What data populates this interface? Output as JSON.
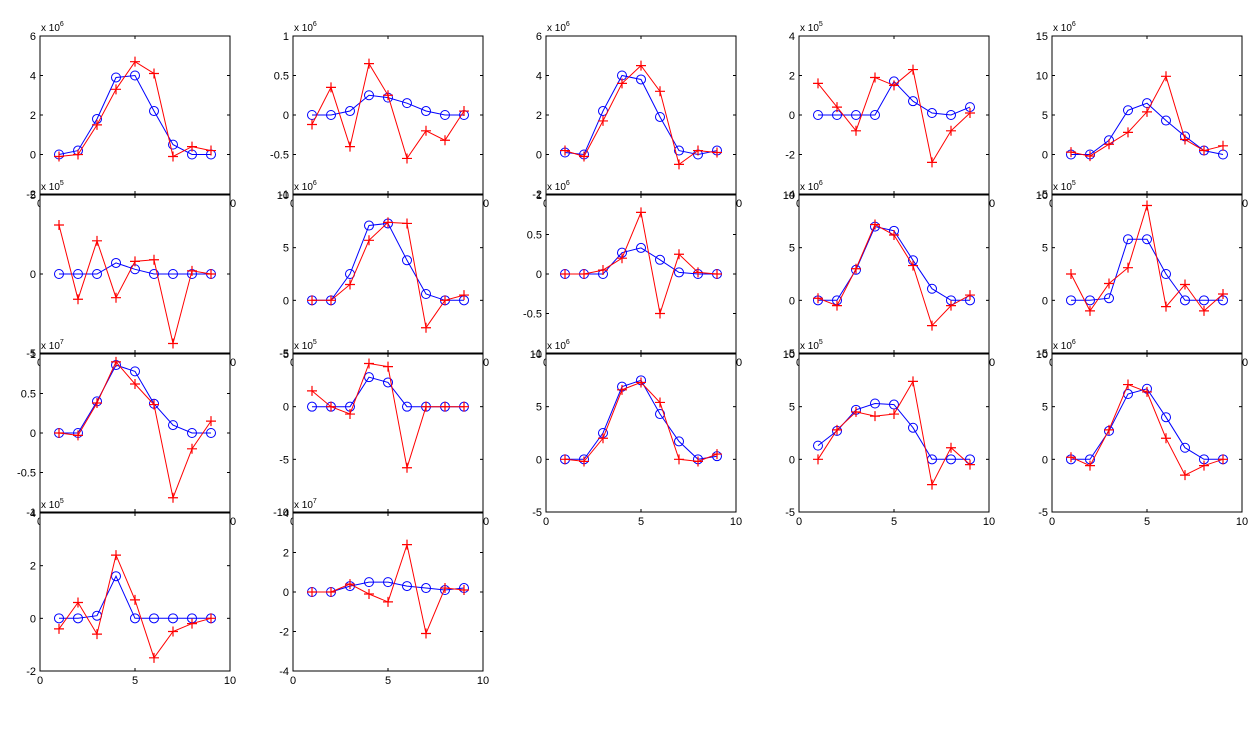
{
  "colors": {
    "blue": "#0000ff",
    "red": "#ff0000",
    "axes": "#000000",
    "background": "#ffffff"
  },
  "chart_data": [
    {
      "type": "line",
      "multiplier": "x 10",
      "exponent": "6",
      "xlim": [
        0,
        10
      ],
      "ylim": [
        -2,
        6
      ],
      "xticks": [
        0,
        5,
        10
      ],
      "yticks": [
        -2,
        0,
        2,
        4,
        6
      ],
      "x": [
        1,
        2,
        3,
        4,
        5,
        6,
        7,
        8,
        9
      ],
      "series": [
        {
          "marker": "circle",
          "color": "#0000ff",
          "values": [
            0,
            0.2,
            1.8,
            3.9,
            4.0,
            2.2,
            0.5,
            0,
            0
          ]
        },
        {
          "marker": "plus",
          "color": "#ff0000",
          "values": [
            -0.1,
            0,
            1.5,
            3.3,
            4.7,
            4.1,
            -0.1,
            0.4,
            0.2
          ]
        }
      ]
    },
    {
      "type": "line",
      "multiplier": "x 10",
      "exponent": "6",
      "xlim": [
        0,
        10
      ],
      "ylim": [
        -1,
        1
      ],
      "xticks": [
        0,
        5,
        10
      ],
      "yticks": [
        -1,
        -0.5,
        0,
        0.5,
        1
      ],
      "x": [
        1,
        2,
        3,
        4,
        5,
        6,
        7,
        8,
        9
      ],
      "series": [
        {
          "marker": "circle",
          "color": "#0000ff",
          "values": [
            0,
            0,
            0.05,
            0.25,
            0.22,
            0.15,
            0.05,
            0,
            0
          ]
        },
        {
          "marker": "plus",
          "color": "#ff0000",
          "values": [
            -0.12,
            0.35,
            -0.4,
            0.65,
            0.25,
            -0.55,
            -0.2,
            -0.32,
            0.05
          ]
        }
      ]
    },
    {
      "type": "line",
      "multiplier": "x 10",
      "exponent": "6",
      "xlim": [
        0,
        10
      ],
      "ylim": [
        -2,
        6
      ],
      "xticks": [
        0,
        5,
        10
      ],
      "yticks": [
        -2,
        0,
        2,
        4,
        6
      ],
      "x": [
        1,
        2,
        3,
        4,
        5,
        6,
        7,
        8,
        9
      ],
      "series": [
        {
          "marker": "circle",
          "color": "#0000ff",
          "values": [
            0.1,
            0,
            2.2,
            4.0,
            3.8,
            1.9,
            0.2,
            0,
            0.2
          ]
        },
        {
          "marker": "plus",
          "color": "#ff0000",
          "values": [
            0.2,
            -0.1,
            1.7,
            3.6,
            4.5,
            3.2,
            -0.5,
            0.2,
            0.1
          ]
        }
      ]
    },
    {
      "type": "line",
      "multiplier": "x 10",
      "exponent": "5",
      "xlim": [
        0,
        10
      ],
      "ylim": [
        -4,
        4
      ],
      "xticks": [
        0,
        5,
        10
      ],
      "yticks": [
        -4,
        -2,
        0,
        2,
        4
      ],
      "x": [
        1,
        2,
        3,
        4,
        5,
        6,
        7,
        8,
        9
      ],
      "series": [
        {
          "marker": "circle",
          "color": "#0000ff",
          "values": [
            0,
            0,
            0,
            0,
            1.7,
            0.7,
            0.1,
            0,
            0.4
          ]
        },
        {
          "marker": "plus",
          "color": "#ff0000",
          "values": [
            1.6,
            0.4,
            -0.8,
            1.9,
            1.5,
            2.3,
            -2.4,
            -0.8,
            0.1
          ]
        }
      ]
    },
    {
      "type": "line",
      "multiplier": "x 10",
      "exponent": "6",
      "xlim": [
        0,
        10
      ],
      "ylim": [
        -5,
        15
      ],
      "xticks": [
        0,
        5,
        10
      ],
      "yticks": [
        -5,
        0,
        5,
        10,
        15
      ],
      "x": [
        1,
        2,
        3,
        4,
        5,
        6,
        7,
        8,
        9
      ],
      "series": [
        {
          "marker": "circle",
          "color": "#0000ff",
          "values": [
            0,
            0,
            1.8,
            5.6,
            6.5,
            4.3,
            2.3,
            0.5,
            0
          ]
        },
        {
          "marker": "plus",
          "color": "#ff0000",
          "values": [
            0.3,
            -0.2,
            1.3,
            2.8,
            5.4,
            9.9,
            1.9,
            0.5,
            1.1
          ]
        }
      ]
    },
    {
      "type": "line",
      "multiplier": "x 10",
      "exponent": "5",
      "xlim": [
        0,
        10
      ],
      "ylim": [
        -5,
        5
      ],
      "xticks": [
        0,
        5,
        10
      ],
      "yticks": [
        -5,
        0,
        5
      ],
      "x": [
        1,
        2,
        3,
        4,
        5,
        6,
        7,
        8,
        9
      ],
      "series": [
        {
          "marker": "circle",
          "color": "#0000ff",
          "values": [
            0,
            0,
            0,
            0.7,
            0.3,
            0,
            0,
            0,
            0
          ]
        },
        {
          "marker": "plus",
          "color": "#ff0000",
          "values": [
            3.1,
            -1.6,
            2.1,
            -1.5,
            0.8,
            0.9,
            -4.4,
            0.2,
            0
          ]
        }
      ]
    },
    {
      "type": "line",
      "multiplier": "x 10",
      "exponent": "6",
      "xlim": [
        0,
        10
      ],
      "ylim": [
        -5,
        10
      ],
      "xticks": [
        0,
        5,
        10
      ],
      "yticks": [
        -5,
        0,
        5,
        10
      ],
      "x": [
        1,
        2,
        3,
        4,
        5,
        6,
        7,
        8,
        9
      ],
      "series": [
        {
          "marker": "circle",
          "color": "#0000ff",
          "values": [
            0,
            0,
            2.5,
            7.1,
            7.3,
            3.8,
            0.6,
            0,
            0
          ]
        },
        {
          "marker": "plus",
          "color": "#ff0000",
          "values": [
            0,
            0,
            1.5,
            5.7,
            7.4,
            7.3,
            -2.6,
            0,
            0.5
          ]
        }
      ]
    },
    {
      "type": "line",
      "multiplier": "x 10",
      "exponent": "6",
      "xlim": [
        0,
        10
      ],
      "ylim": [
        -1,
        1
      ],
      "xticks": [
        0,
        5,
        10
      ],
      "yticks": [
        -1,
        -0.5,
        0,
        0.5,
        1
      ],
      "x": [
        1,
        2,
        3,
        4,
        5,
        6,
        7,
        8,
        9
      ],
      "series": [
        {
          "marker": "circle",
          "color": "#0000ff",
          "values": [
            0,
            0,
            0,
            0.27,
            0.33,
            0.18,
            0.02,
            0,
            0
          ]
        },
        {
          "marker": "plus",
          "color": "#ff0000",
          "values": [
            0,
            0,
            0.05,
            0.2,
            0.78,
            -0.5,
            0.25,
            0.02,
            0
          ]
        }
      ]
    },
    {
      "type": "line",
      "multiplier": "x 10",
      "exponent": "6",
      "xlim": [
        0,
        10
      ],
      "ylim": [
        -5,
        10
      ],
      "xticks": [
        0,
        5,
        10
      ],
      "yticks": [
        -5,
        0,
        5,
        10
      ],
      "x": [
        1,
        2,
        3,
        4,
        5,
        6,
        7,
        8,
        9
      ],
      "series": [
        {
          "marker": "circle",
          "color": "#0000ff",
          "values": [
            0,
            0,
            2.9,
            7.0,
            6.6,
            3.8,
            1.1,
            0,
            0
          ]
        },
        {
          "marker": "plus",
          "color": "#ff0000",
          "values": [
            0.2,
            -0.5,
            3.0,
            7.2,
            6.2,
            3.3,
            -2.4,
            -0.5,
            0.5
          ]
        }
      ]
    },
    {
      "type": "line",
      "multiplier": "x 10",
      "exponent": "5",
      "xlim": [
        0,
        10
      ],
      "ylim": [
        -5,
        10
      ],
      "xticks": [
        0,
        5,
        10
      ],
      "yticks": [
        -5,
        0,
        5,
        10
      ],
      "x": [
        1,
        2,
        3,
        4,
        5,
        6,
        7,
        8,
        9
      ],
      "series": [
        {
          "marker": "circle",
          "color": "#0000ff",
          "values": [
            0,
            0,
            0.2,
            5.8,
            5.8,
            2.5,
            0,
            0,
            0
          ]
        },
        {
          "marker": "plus",
          "color": "#ff0000",
          "values": [
            2.5,
            -1.0,
            1.6,
            3.1,
            9.0,
            -0.6,
            1.5,
            -1.0,
            0.6
          ]
        }
      ]
    },
    {
      "type": "line",
      "multiplier": "x 10",
      "exponent": "7",
      "xlim": [
        0,
        10
      ],
      "ylim": [
        -1,
        1
      ],
      "xticks": [
        0,
        5,
        10
      ],
      "yticks": [
        -1,
        -0.5,
        0,
        0.5,
        1
      ],
      "x": [
        1,
        2,
        3,
        4,
        5,
        6,
        7,
        8,
        9
      ],
      "series": [
        {
          "marker": "circle",
          "color": "#0000ff",
          "values": [
            0,
            0,
            0.4,
            0.86,
            0.78,
            0.37,
            0.1,
            0,
            0
          ]
        },
        {
          "marker": "plus",
          "color": "#ff0000",
          "values": [
            0,
            -0.03,
            0.38,
            0.9,
            0.62,
            0.36,
            -0.82,
            -0.2,
            0.15
          ]
        }
      ]
    },
    {
      "type": "line",
      "multiplier": "x 10",
      "exponent": "5",
      "xlim": [
        0,
        10
      ],
      "ylim": [
        -10,
        5
      ],
      "xticks": [
        0,
        5,
        10
      ],
      "yticks": [
        -10,
        -5,
        0,
        5
      ],
      "x": [
        1,
        2,
        3,
        4,
        5,
        6,
        7,
        8,
        9
      ],
      "series": [
        {
          "marker": "circle",
          "color": "#0000ff",
          "values": [
            0,
            0,
            0,
            2.8,
            2.3,
            0,
            0,
            0,
            0
          ]
        },
        {
          "marker": "plus",
          "color": "#ff0000",
          "values": [
            1.5,
            0,
            -0.7,
            4.1,
            3.8,
            -5.8,
            0,
            0,
            0
          ]
        }
      ]
    },
    {
      "type": "line",
      "multiplier": "x 10",
      "exponent": "6",
      "xlim": [
        0,
        10
      ],
      "ylim": [
        -5,
        10
      ],
      "xticks": [
        0,
        5,
        10
      ],
      "yticks": [
        -5,
        0,
        5,
        10
      ],
      "x": [
        1,
        2,
        3,
        4,
        5,
        6,
        7,
        8,
        9
      ],
      "series": [
        {
          "marker": "circle",
          "color": "#0000ff",
          "values": [
            0,
            0,
            2.5,
            6.9,
            7.5,
            4.3,
            1.7,
            0,
            0.3
          ]
        },
        {
          "marker": "plus",
          "color": "#ff0000",
          "values": [
            0,
            -0.2,
            2.0,
            6.6,
            7.3,
            5.4,
            0,
            -0.2,
            0.5
          ]
        }
      ]
    },
    {
      "type": "line",
      "multiplier": "x 10",
      "exponent": "5",
      "xlim": [
        0,
        10
      ],
      "ylim": [
        -5,
        10
      ],
      "xticks": [
        0,
        5,
        10
      ],
      "yticks": [
        -5,
        0,
        5,
        10
      ],
      "x": [
        1,
        2,
        3,
        4,
        5,
        6,
        7,
        8,
        9
      ],
      "series": [
        {
          "marker": "circle",
          "color": "#0000ff",
          "values": [
            1.3,
            2.7,
            4.7,
            5.3,
            5.2,
            3.0,
            0,
            0,
            0
          ]
        },
        {
          "marker": "plus",
          "color": "#ff0000",
          "values": [
            0,
            2.8,
            4.5,
            4.1,
            4.3,
            7.4,
            -2.4,
            1.1,
            -0.5
          ]
        }
      ]
    },
    {
      "type": "line",
      "multiplier": "x 10",
      "exponent": "6",
      "xlim": [
        0,
        10
      ],
      "ylim": [
        -5,
        10
      ],
      "xticks": [
        0,
        5,
        10
      ],
      "yticks": [
        -5,
        0,
        5,
        10
      ],
      "x": [
        1,
        2,
        3,
        4,
        5,
        6,
        7,
        8,
        9
      ],
      "series": [
        {
          "marker": "circle",
          "color": "#0000ff",
          "values": [
            0,
            0,
            2.7,
            6.2,
            6.7,
            4.0,
            1.1,
            0,
            0
          ]
        },
        {
          "marker": "plus",
          "color": "#ff0000",
          "values": [
            0.2,
            -0.6,
            2.8,
            7.1,
            6.4,
            2.0,
            -1.5,
            -0.6,
            0
          ]
        }
      ]
    },
    {
      "type": "line",
      "multiplier": "x 10",
      "exponent": "5",
      "xlim": [
        0,
        10
      ],
      "ylim": [
        -2,
        4
      ],
      "xticks": [
        0,
        5,
        10
      ],
      "yticks": [
        -2,
        0,
        2,
        4
      ],
      "x": [
        1,
        2,
        3,
        4,
        5,
        6,
        7,
        8,
        9
      ],
      "series": [
        {
          "marker": "circle",
          "color": "#0000ff",
          "values": [
            0,
            0,
            0.1,
            1.6,
            0,
            0,
            0,
            0,
            0
          ]
        },
        {
          "marker": "plus",
          "color": "#ff0000",
          "values": [
            -0.4,
            0.6,
            -0.6,
            2.4,
            0.7,
            -1.5,
            -0.5,
            -0.2,
            0
          ]
        }
      ]
    },
    {
      "type": "line",
      "multiplier": "x 10",
      "exponent": "7",
      "xlim": [
        0,
        10
      ],
      "ylim": [
        -4,
        4
      ],
      "xticks": [
        0,
        5,
        10
      ],
      "yticks": [
        -4,
        -2,
        0,
        2,
        4
      ],
      "x": [
        1,
        2,
        3,
        4,
        5,
        6,
        7,
        8,
        9
      ],
      "series": [
        {
          "marker": "circle",
          "color": "#0000ff",
          "values": [
            0,
            0,
            0.3,
            0.5,
            0.5,
            0.3,
            0.2,
            0.1,
            0.2
          ]
        },
        {
          "marker": "plus",
          "color": "#ff0000",
          "values": [
            0,
            0,
            0.4,
            -0.1,
            -0.5,
            2.4,
            -2.1,
            0.2,
            0.1
          ]
        }
      ]
    }
  ]
}
